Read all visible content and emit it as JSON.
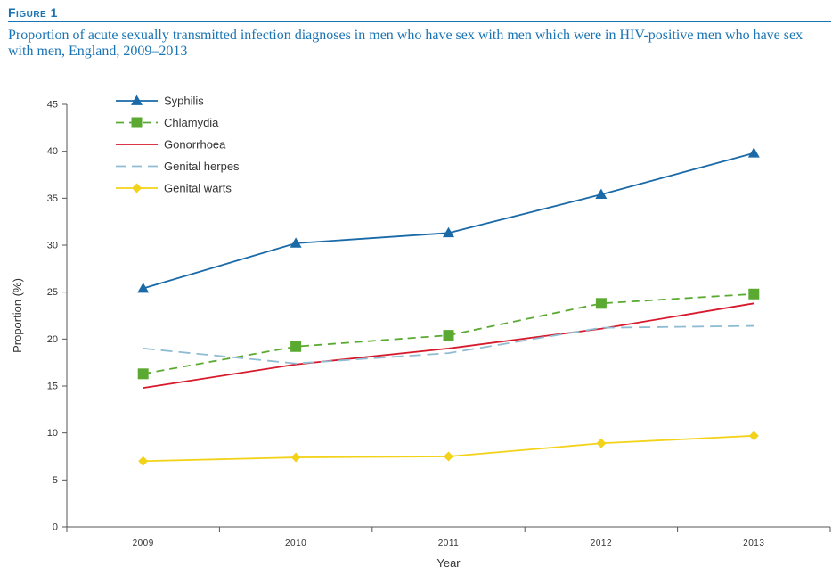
{
  "figure": {
    "label": "Figure 1",
    "title": "Proportion of acute sexually transmitted infection diagnoses in men who have sex with men which were in HIV-positive men who have sex with men, England, 2009–2013"
  },
  "chart_data": {
    "type": "line",
    "title": "Proportion of acute sexually transmitted infection diagnoses in men who have sex with men which were in HIV-positive men who have sex with men, England, 2009–2013",
    "xlabel": "Year",
    "ylabel": "Proportion (%)",
    "ylim": [
      0,
      45
    ],
    "yticks": [
      0,
      5,
      10,
      15,
      20,
      25,
      30,
      35,
      40,
      45
    ],
    "categories": [
      "2009",
      "2010",
      "2011",
      "2012",
      "2013"
    ],
    "grid": false,
    "legend_position": "top-left",
    "series": [
      {
        "name": "Syphilis",
        "values": [
          25.4,
          30.2,
          31.3,
          35.4,
          39.8
        ],
        "color": "#1a6aa8",
        "dash": "solid",
        "marker": "triangle"
      },
      {
        "name": "Chlamydia",
        "values": [
          16.3,
          19.2,
          20.4,
          23.8,
          24.8
        ],
        "color": "#5aaa32",
        "dash": "dashed",
        "marker": "square"
      },
      {
        "name": "Gonorrhoea",
        "values": [
          14.8,
          17.3,
          19.0,
          21.1,
          23.8
        ],
        "color": "#d7192c",
        "dash": "solid",
        "marker": "none"
      },
      {
        "name": "Genital herpes",
        "values": [
          19.0,
          17.4,
          18.5,
          21.2,
          21.4
        ],
        "color": "#8fbcd2",
        "dash": "longdash",
        "marker": "none"
      },
      {
        "name": "Genital warts",
        "values": [
          7.0,
          7.4,
          7.5,
          8.9,
          9.7
        ],
        "color": "#f3d31a",
        "dash": "solid",
        "marker": "diamond"
      }
    ]
  }
}
